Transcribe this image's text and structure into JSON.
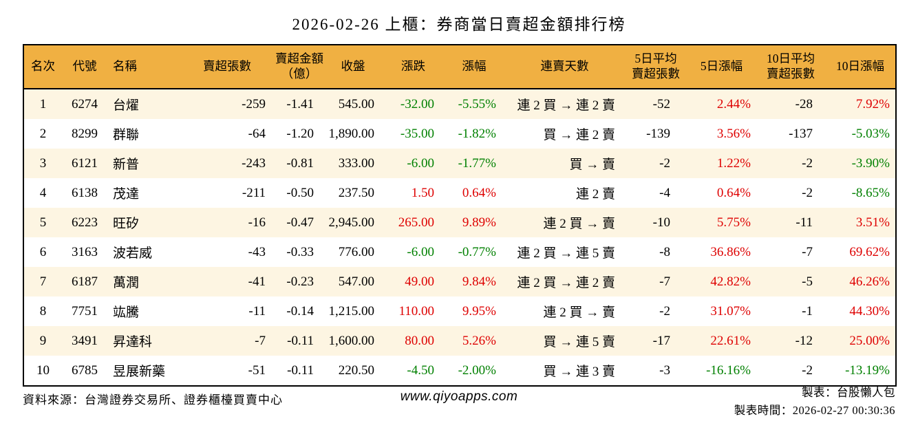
{
  "page": {
    "title": "2026-02-26 上櫃：券商當日賣超金額排行榜",
    "colors": {
      "header_bg": "#F0B042",
      "row_alt": "#FDF5E2",
      "up": "#DE0000",
      "down": "#008000",
      "border": "#000000"
    }
  },
  "table": {
    "headers": [
      "名次",
      "代號",
      "名稱",
      "賣超張數",
      "賣超金額\n（億）",
      "收盤",
      "漲跌",
      "漲幅",
      "連賣天數",
      "5日平均\n賣超張數",
      "5日漲幅",
      "10日平均\n賣超張數",
      "10日漲幅"
    ],
    "rows": [
      {
        "cells": [
          {
            "t": "1"
          },
          {
            "t": "6274"
          },
          {
            "t": "台燿"
          },
          {
            "t": "-259"
          },
          {
            "t": "-1.41"
          },
          {
            "t": "545.00"
          },
          {
            "t": "-32.00",
            "c": "down"
          },
          {
            "t": "-5.55%",
            "c": "down"
          },
          {
            "t": "連 2 買 → 連 2 賣"
          },
          {
            "t": "-52"
          },
          {
            "t": "2.44%",
            "c": "up"
          },
          {
            "t": "-28"
          },
          {
            "t": "7.92%",
            "c": "up"
          }
        ]
      },
      {
        "cells": [
          {
            "t": "2"
          },
          {
            "t": "8299"
          },
          {
            "t": "群聯"
          },
          {
            "t": "-64"
          },
          {
            "t": "-1.20"
          },
          {
            "t": "1,890.00"
          },
          {
            "t": "-35.00",
            "c": "down"
          },
          {
            "t": "-1.82%",
            "c": "down"
          },
          {
            "t": "買 → 連 2 賣"
          },
          {
            "t": "-139"
          },
          {
            "t": "3.56%",
            "c": "up"
          },
          {
            "t": "-137"
          },
          {
            "t": "-5.03%",
            "c": "down"
          }
        ]
      },
      {
        "cells": [
          {
            "t": "3"
          },
          {
            "t": "6121"
          },
          {
            "t": "新普"
          },
          {
            "t": "-243"
          },
          {
            "t": "-0.81"
          },
          {
            "t": "333.00"
          },
          {
            "t": "-6.00",
            "c": "down"
          },
          {
            "t": "-1.77%",
            "c": "down"
          },
          {
            "t": "買 → 賣"
          },
          {
            "t": "-2"
          },
          {
            "t": "1.22%",
            "c": "up"
          },
          {
            "t": "-2"
          },
          {
            "t": "-3.90%",
            "c": "down"
          }
        ]
      },
      {
        "cells": [
          {
            "t": "4"
          },
          {
            "t": "6138"
          },
          {
            "t": "茂達"
          },
          {
            "t": "-211"
          },
          {
            "t": "-0.50"
          },
          {
            "t": "237.50"
          },
          {
            "t": "1.50",
            "c": "up"
          },
          {
            "t": "0.64%",
            "c": "up"
          },
          {
            "t": "連 2 賣"
          },
          {
            "t": "-4"
          },
          {
            "t": "0.64%",
            "c": "up"
          },
          {
            "t": "-2"
          },
          {
            "t": "-8.65%",
            "c": "down"
          }
        ]
      },
      {
        "cells": [
          {
            "t": "5"
          },
          {
            "t": "6223"
          },
          {
            "t": "旺矽"
          },
          {
            "t": "-16"
          },
          {
            "t": "-0.47"
          },
          {
            "t": "2,945.00"
          },
          {
            "t": "265.00",
            "c": "up"
          },
          {
            "t": "9.89%",
            "c": "up"
          },
          {
            "t": "連 2 買 → 賣"
          },
          {
            "t": "-10"
          },
          {
            "t": "5.75%",
            "c": "up"
          },
          {
            "t": "-11"
          },
          {
            "t": "3.51%",
            "c": "up"
          }
        ]
      },
      {
        "cells": [
          {
            "t": "6"
          },
          {
            "t": "3163"
          },
          {
            "t": "波若威"
          },
          {
            "t": "-43"
          },
          {
            "t": "-0.33"
          },
          {
            "t": "776.00"
          },
          {
            "t": "-6.00",
            "c": "down"
          },
          {
            "t": "-0.77%",
            "c": "down"
          },
          {
            "t": "連 2 買 → 連 5 賣"
          },
          {
            "t": "-8"
          },
          {
            "t": "36.86%",
            "c": "up"
          },
          {
            "t": "-7"
          },
          {
            "t": "69.62%",
            "c": "up"
          }
        ]
      },
      {
        "cells": [
          {
            "t": "7"
          },
          {
            "t": "6187"
          },
          {
            "t": "萬潤"
          },
          {
            "t": "-41"
          },
          {
            "t": "-0.23"
          },
          {
            "t": "547.00"
          },
          {
            "t": "49.00",
            "c": "up"
          },
          {
            "t": "9.84%",
            "c": "up"
          },
          {
            "t": "連 2 買 → 連 2 賣"
          },
          {
            "t": "-7"
          },
          {
            "t": "42.82%",
            "c": "up"
          },
          {
            "t": "-5"
          },
          {
            "t": "46.26%",
            "c": "up"
          }
        ]
      },
      {
        "cells": [
          {
            "t": "8"
          },
          {
            "t": "7751"
          },
          {
            "t": "竑騰"
          },
          {
            "t": "-11"
          },
          {
            "t": "-0.14"
          },
          {
            "t": "1,215.00"
          },
          {
            "t": "110.00",
            "c": "up"
          },
          {
            "t": "9.95%",
            "c": "up"
          },
          {
            "t": "連 2 買 → 賣"
          },
          {
            "t": "-2"
          },
          {
            "t": "31.07%",
            "c": "up"
          },
          {
            "t": "-1"
          },
          {
            "t": "44.30%",
            "c": "up"
          }
        ]
      },
      {
        "cells": [
          {
            "t": "9"
          },
          {
            "t": "3491"
          },
          {
            "t": "昇達科"
          },
          {
            "t": "-7"
          },
          {
            "t": "-0.11"
          },
          {
            "t": "1,600.00"
          },
          {
            "t": "80.00",
            "c": "up"
          },
          {
            "t": "5.26%",
            "c": "up"
          },
          {
            "t": "買 → 連 5 賣"
          },
          {
            "t": "-17"
          },
          {
            "t": "22.61%",
            "c": "up"
          },
          {
            "t": "-12"
          },
          {
            "t": "25.00%",
            "c": "up"
          }
        ]
      },
      {
        "cells": [
          {
            "t": "10"
          },
          {
            "t": "6785"
          },
          {
            "t": "昱展新藥"
          },
          {
            "t": "-51"
          },
          {
            "t": "-0.11"
          },
          {
            "t": "220.50"
          },
          {
            "t": "-4.50",
            "c": "down"
          },
          {
            "t": "-2.00%",
            "c": "down"
          },
          {
            "t": "買 → 連 3 賣"
          },
          {
            "t": "-3"
          },
          {
            "t": "-16.16%",
            "c": "down"
          },
          {
            "t": "-2"
          },
          {
            "t": "-13.19%",
            "c": "down"
          }
        ]
      }
    ]
  },
  "footer": {
    "source": "資料來源：台灣證券交易所、證券櫃檯買賣中心",
    "site": "www.qiyoapps.com",
    "maker": "製表：台股懶人包",
    "made_at": "製表時間：2026-02-27 00:30:36"
  }
}
